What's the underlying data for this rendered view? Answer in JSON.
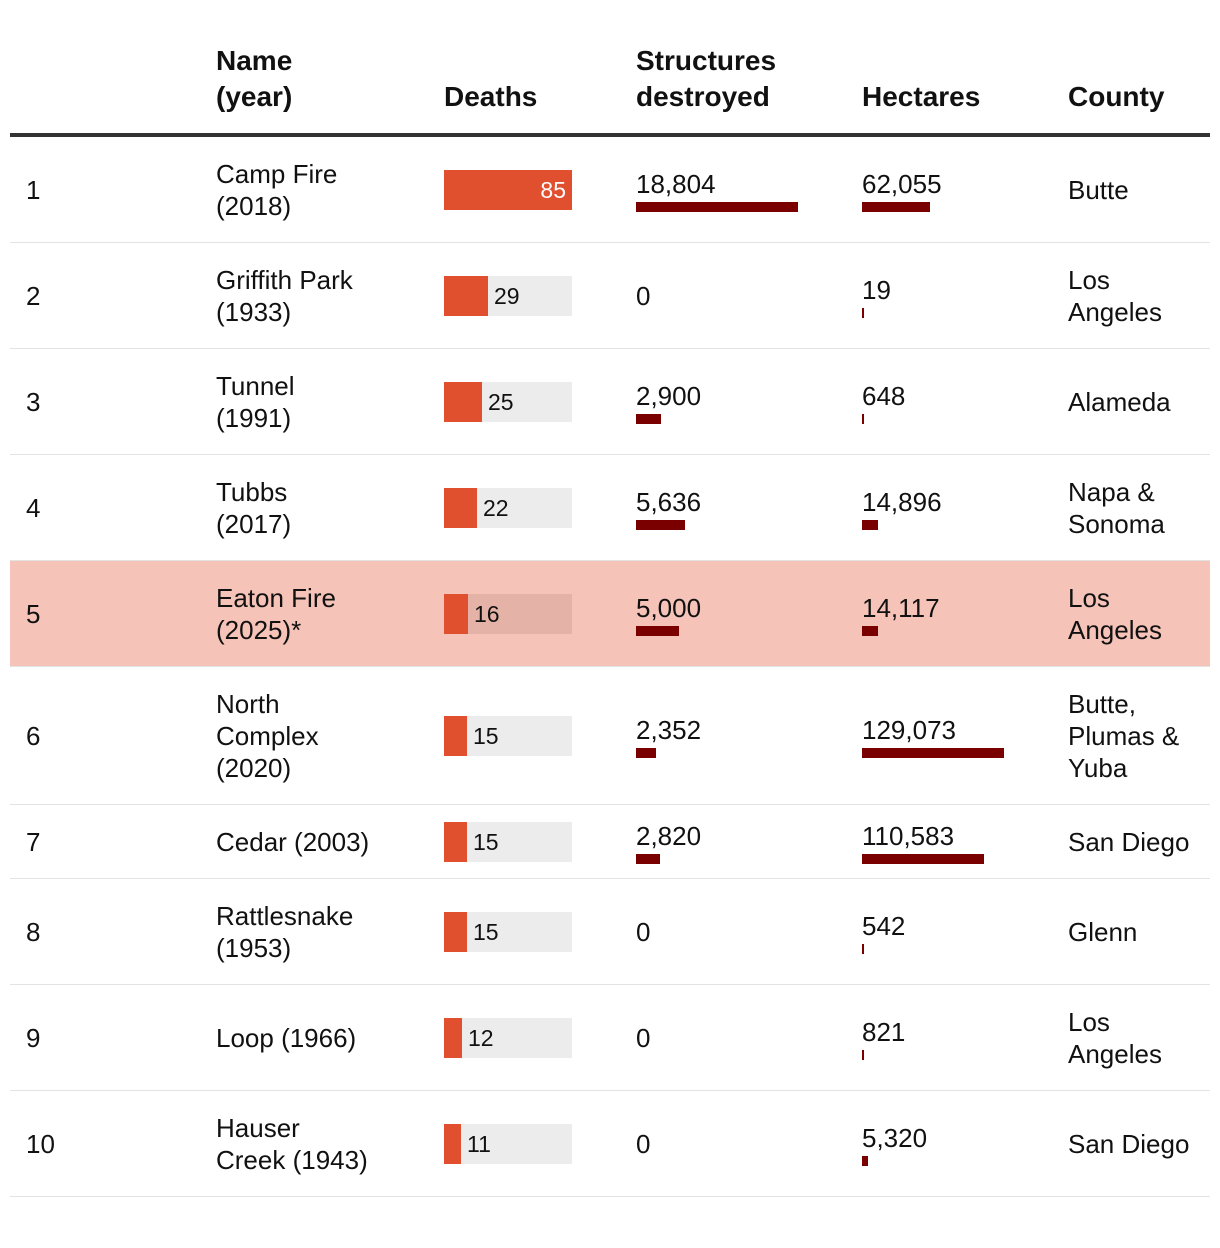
{
  "chart_data": {
    "type": "table",
    "headers": {
      "name": "Name\n(year)",
      "deaths": "Deaths",
      "structures": "Structures\ndestroyed",
      "hectares": "Hectares",
      "county": "County"
    },
    "max_deaths": 85,
    "max_structures": 18804,
    "max_hectares": 129073,
    "colors": {
      "deaths_bar": "#e1502e",
      "metric_bar": "#7a0000",
      "highlight_row": "#f5c3b8",
      "track": "#ececec"
    },
    "rows": [
      {
        "rank": "1",
        "name": "Camp Fire\n(2018)",
        "deaths": 85,
        "structures": 18804,
        "structures_label": "18,804",
        "hectares": 62055,
        "hectares_label": "62,055",
        "county": "Butte",
        "highlight": false
      },
      {
        "rank": "2",
        "name": "Griffith Park\n(1933)",
        "deaths": 29,
        "structures": 0,
        "structures_label": "0",
        "hectares": 19,
        "hectares_label": "19",
        "county": "Los\nAngeles",
        "highlight": false
      },
      {
        "rank": "3",
        "name": "Tunnel\n(1991)",
        "deaths": 25,
        "structures": 2900,
        "structures_label": "2,900",
        "hectares": 648,
        "hectares_label": "648",
        "county": "Alameda",
        "highlight": false
      },
      {
        "rank": "4",
        "name": "Tubbs\n(2017)",
        "deaths": 22,
        "structures": 5636,
        "structures_label": "5,636",
        "hectares": 14896,
        "hectares_label": "14,896",
        "county": "Napa &\nSonoma",
        "highlight": false
      },
      {
        "rank": "5",
        "name": "Eaton Fire\n(2025)*",
        "deaths": 16,
        "structures": 5000,
        "structures_label": "5,000",
        "hectares": 14117,
        "hectares_label": "14,117",
        "county": "Los\nAngeles",
        "highlight": true
      },
      {
        "rank": "6",
        "name": "North\nComplex\n(2020)",
        "deaths": 15,
        "structures": 2352,
        "structures_label": "2,352",
        "hectares": 129073,
        "hectares_label": "129,073",
        "county": "Butte,\nPlumas &\nYuba",
        "highlight": false
      },
      {
        "rank": "7",
        "name": "Cedar (2003)",
        "deaths": 15,
        "structures": 2820,
        "structures_label": "2,820",
        "hectares": 110583,
        "hectares_label": "110,583",
        "county": "San Diego",
        "highlight": false
      },
      {
        "rank": "8",
        "name": "Rattlesnake\n(1953)",
        "deaths": 15,
        "structures": 0,
        "structures_label": "0",
        "hectares": 542,
        "hectares_label": "542",
        "county": "Glenn",
        "highlight": false
      },
      {
        "rank": "9",
        "name": "Loop (1966)",
        "deaths": 12,
        "structures": 0,
        "structures_label": "0",
        "hectares": 821,
        "hectares_label": "821",
        "county": "Los\nAngeles",
        "highlight": false
      },
      {
        "rank": "10",
        "name": "Hauser\nCreek (1943)",
        "deaths": 11,
        "structures": 0,
        "structures_label": "0",
        "hectares": 5320,
        "hectares_label": "5,320",
        "county": "San Diego",
        "highlight": false
      }
    ]
  }
}
